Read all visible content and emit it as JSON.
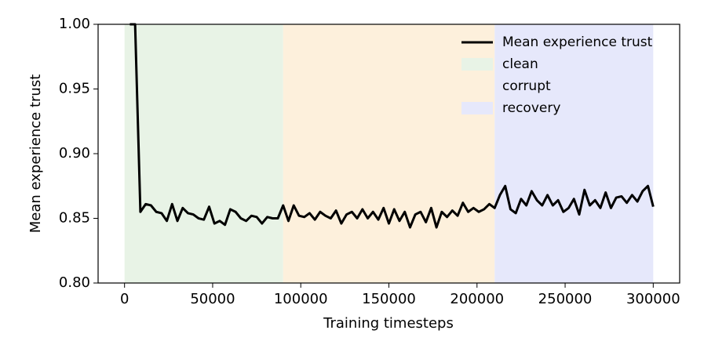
{
  "chart_data": {
    "type": "line",
    "x_label": "Training timesteps",
    "y_label": "Mean experience trust",
    "xlim": [
      -15000,
      315000
    ],
    "ylim": [
      0.8,
      1.0
    ],
    "xticks": [
      0,
      50000,
      100000,
      150000,
      200000,
      250000,
      300000
    ],
    "yticks": [
      {
        "value": 0.8,
        "label": "0.80"
      },
      0.85,
      {
        "value": 0.9,
        "label": "0.90"
      },
      0.95,
      {
        "value": 1.0,
        "label": "1.00"
      }
    ],
    "grid": false,
    "legend": "upper right",
    "spans": [
      {
        "name": "clean",
        "start": 0,
        "end": 90000,
        "color": "#e8f3e6"
      },
      {
        "name": "corrupt",
        "start": 90000,
        "end": 210000,
        "color": "#fdf0dc"
      },
      {
        "name": "recovery",
        "start": 210000,
        "end": 300000,
        "color": "#e6e8fb"
      }
    ],
    "x": [
      3000,
      6000,
      9000,
      12000,
      15000,
      18000,
      21000,
      24000,
      27000,
      30000,
      33000,
      36000,
      39000,
      42000,
      45000,
      48000,
      51000,
      54000,
      57000,
      60000,
      63000,
      66000,
      69000,
      72000,
      75000,
      78000,
      81000,
      84000,
      87000,
      90000,
      93000,
      96000,
      99000,
      102000,
      105000,
      108000,
      111000,
      114000,
      117000,
      120000,
      123000,
      126000,
      129000,
      132000,
      135000,
      138000,
      141000,
      144000,
      147000,
      150000,
      153000,
      156000,
      159000,
      162000,
      165000,
      168000,
      171000,
      174000,
      177000,
      180000,
      183000,
      186000,
      189000,
      192000,
      195000,
      198000,
      201000,
      204000,
      207000,
      210000,
      213000,
      216000,
      219000,
      222000,
      225000,
      228000,
      231000,
      234000,
      237000,
      240000,
      243000,
      246000,
      249000,
      252000,
      255000,
      258000,
      261000,
      264000,
      267000,
      270000,
      273000,
      276000,
      279000,
      282000,
      285000,
      288000,
      291000,
      294000,
      297000,
      300000
    ],
    "series": [
      {
        "name": "Mean experience trust",
        "color": "#000000",
        "values": [
          1.0,
          1.0,
          0.855,
          0.861,
          0.86,
          0.855,
          0.854,
          0.848,
          0.861,
          0.848,
          0.858,
          0.854,
          0.853,
          0.85,
          0.849,
          0.859,
          0.846,
          0.848,
          0.845,
          0.857,
          0.855,
          0.85,
          0.848,
          0.852,
          0.851,
          0.846,
          0.851,
          0.85,
          0.85,
          0.86,
          0.848,
          0.86,
          0.852,
          0.851,
          0.854,
          0.849,
          0.855,
          0.852,
          0.85,
          0.856,
          0.846,
          0.853,
          0.855,
          0.85,
          0.857,
          0.85,
          0.855,
          0.849,
          0.858,
          0.846,
          0.857,
          0.848,
          0.855,
          0.843,
          0.853,
          0.855,
          0.847,
          0.858,
          0.843,
          0.855,
          0.851,
          0.856,
          0.852,
          0.862,
          0.855,
          0.858,
          0.855,
          0.857,
          0.861,
          0.858,
          0.868,
          0.875,
          0.857,
          0.854,
          0.865,
          0.86,
          0.871,
          0.864,
          0.86,
          0.868,
          0.86,
          0.864,
          0.855,
          0.858,
          0.865,
          0.853,
          0.872,
          0.86,
          0.864,
          0.858,
          0.87,
          0.858,
          0.866,
          0.867,
          0.862,
          0.868,
          0.863,
          0.871,
          0.875,
          0.859
        ]
      }
    ]
  }
}
